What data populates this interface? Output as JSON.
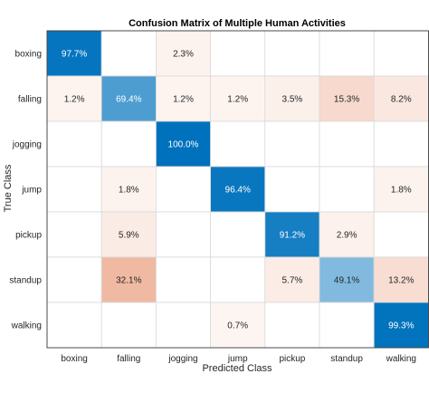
{
  "chart_data": {
    "type": "heatmap",
    "title": "Confusion Matrix of Multiple Human Activities",
    "xlabel": "Predicted Class",
    "ylabel": "True Class",
    "columns": [
      "boxing",
      "falling",
      "jogging",
      "jump",
      "pickup",
      "standup",
      "walking"
    ],
    "rows": [
      "boxing",
      "falling",
      "jogging",
      "jump",
      "pickup",
      "standup",
      "walking"
    ],
    "matrix": [
      [
        97.7,
        null,
        2.3,
        null,
        null,
        null,
        null
      ],
      [
        1.2,
        69.4,
        1.2,
        1.2,
        3.5,
        15.3,
        8.2
      ],
      [
        null,
        null,
        100.0,
        null,
        null,
        null,
        null
      ],
      [
        null,
        1.8,
        null,
        96.4,
        null,
        null,
        1.8
      ],
      [
        null,
        5.9,
        null,
        null,
        91.2,
        2.9,
        null
      ],
      [
        null,
        32.1,
        null,
        null,
        5.7,
        49.1,
        13.2
      ],
      [
        null,
        null,
        null,
        0.7,
        null,
        null,
        99.3
      ]
    ],
    "value_suffix": "%",
    "colors": {
      "correct": "#0072bd",
      "incorrect": "#d95319",
      "grid": "#d9d9d9",
      "border": "#262626"
    }
  }
}
